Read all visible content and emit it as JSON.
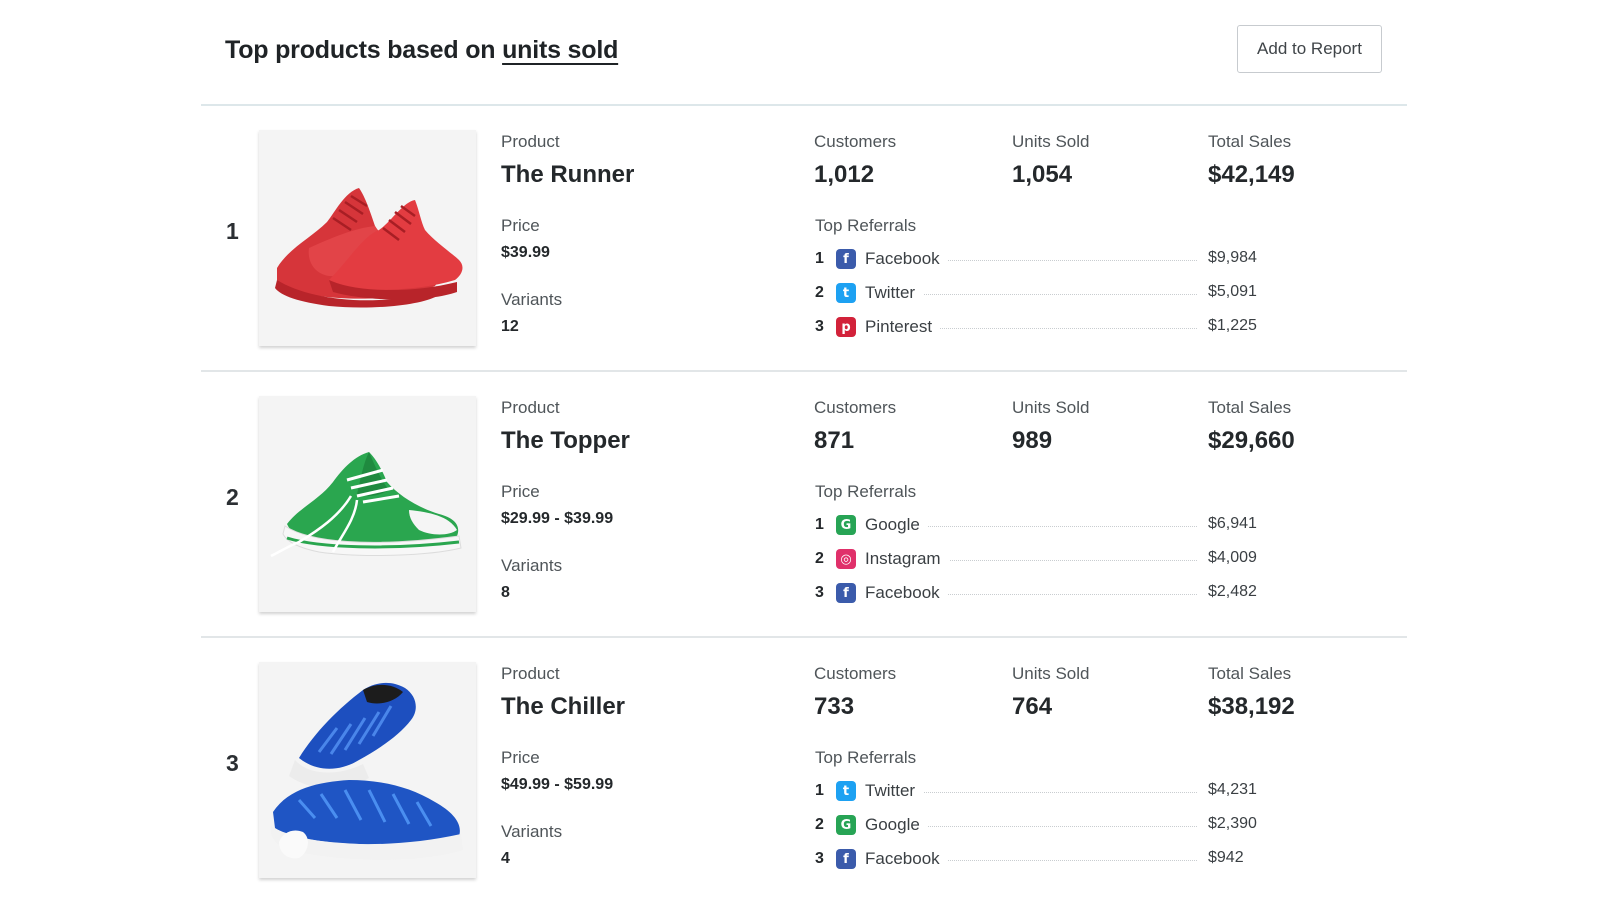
{
  "header": {
    "title_prefix": "Top products based on",
    "title_metric": "units sold",
    "add_button": "Add to Report"
  },
  "labels": {
    "product": "Product",
    "price": "Price",
    "variants": "Variants",
    "customers": "Customers",
    "units_sold": "Units Sold",
    "total_sales": "Total Sales",
    "top_referrals": "Top Referrals"
  },
  "products": [
    {
      "rank": "1",
      "name": "The Runner",
      "price": "$39.99",
      "variants": "12",
      "customers": "1,012",
      "units_sold": "1,054",
      "total_sales": "$42,149",
      "image_icon": "red-sneakers-image",
      "referrals": [
        {
          "rank": "1",
          "source": "Facebook",
          "amount": "$9,984",
          "icon": "facebook-icon",
          "glyph": "f"
        },
        {
          "rank": "2",
          "source": "Twitter",
          "amount": "$5,091",
          "icon": "twitter-icon",
          "glyph": "t"
        },
        {
          "rank": "3",
          "source": "Pinterest",
          "amount": "$1,225",
          "icon": "pinterest-icon",
          "glyph": "p"
        }
      ]
    },
    {
      "rank": "2",
      "name": "The Topper",
      "price": "$29.99 - $39.99",
      "variants": "8",
      "customers": "871",
      "units_sold": "989",
      "total_sales": "$29,660",
      "image_icon": "green-canvas-shoe-image",
      "referrals": [
        {
          "rank": "1",
          "source": "Google",
          "amount": "$6,941",
          "icon": "google-icon",
          "glyph": "G"
        },
        {
          "rank": "2",
          "source": "Instagram",
          "amount": "$4,009",
          "icon": "instagram-icon",
          "glyph": "◎"
        },
        {
          "rank": "3",
          "source": "Facebook",
          "amount": "$2,482",
          "icon": "facebook-icon",
          "glyph": "f"
        }
      ]
    },
    {
      "rank": "3",
      "name": "The Chiller",
      "price": "$49.99 - $59.99",
      "variants": "4",
      "customers": "733",
      "units_sold": "764",
      "total_sales": "$38,192",
      "image_icon": "blue-knit-sneakers-image",
      "referrals": [
        {
          "rank": "1",
          "source": "Twitter",
          "amount": "$4,231",
          "icon": "twitter-icon",
          "glyph": "t"
        },
        {
          "rank": "2",
          "source": "Google",
          "amount": "$2,390",
          "icon": "google-icon",
          "glyph": "G"
        },
        {
          "rank": "3",
          "source": "Facebook",
          "amount": "$942",
          "icon": "facebook-icon",
          "glyph": "f"
        }
      ]
    }
  ],
  "colors": {
    "facebook": "#3b5bab",
    "twitter": "#1da1f2",
    "pinterest": "#d2223a",
    "google": "#27a455",
    "instagram": "#e0306a",
    "runner_shoe": "#e03a3e",
    "topper_shoe": "#22a04b",
    "chiller_shoe": "#1f55c4"
  }
}
